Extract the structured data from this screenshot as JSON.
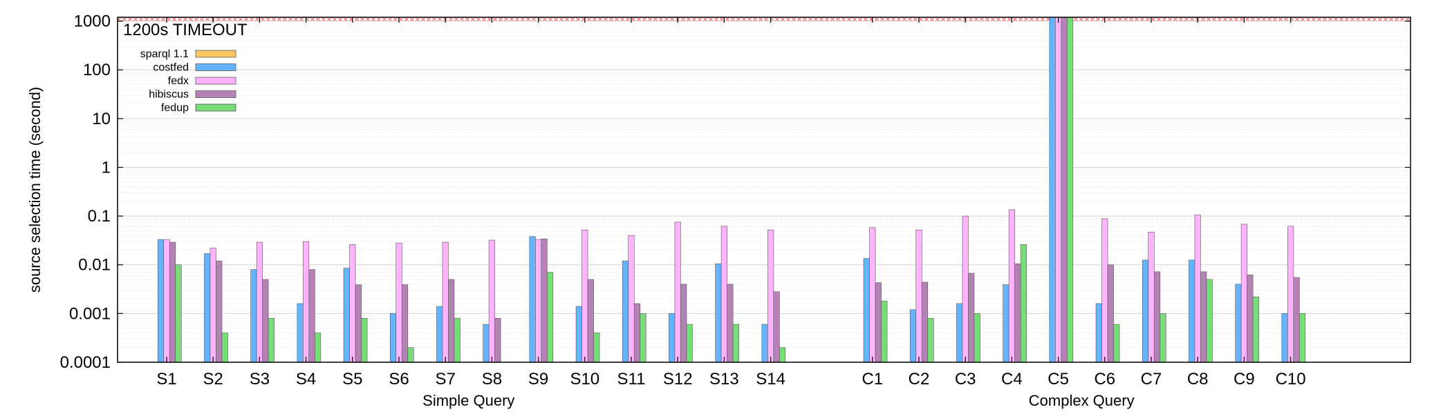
{
  "chart_data": {
    "type": "bar",
    "ylabel": "source selection time (second)",
    "yscale": "log",
    "ylim": [
      0.0001,
      1200
    ],
    "ytick_labels": [
      "0.0001",
      "0.001",
      "0.01",
      "0.1",
      "1",
      "10",
      "100",
      "1000"
    ],
    "ytick_values": [
      0.0001,
      0.001,
      0.01,
      0.1,
      1,
      10,
      100,
      1000
    ],
    "grid": true,
    "legend_position": "top-left",
    "timeout_label": "1200s TIMEOUT",
    "timeout_value": 1200,
    "groups": [
      {
        "label": "Simple Query",
        "categories": [
          "S1",
          "S2",
          "S3",
          "S4",
          "S5",
          "S6",
          "S7",
          "S8",
          "S9",
          "S10",
          "S11",
          "S12",
          "S13",
          "S14"
        ]
      },
      {
        "label": "Complex Query",
        "categories": [
          "C1",
          "C2",
          "C3",
          "C4",
          "C5",
          "C6",
          "C7",
          "C8",
          "C9",
          "C10"
        ]
      }
    ],
    "series": [
      {
        "name": "sparql 1.1",
        "color": "#ffc864",
        "values": [
          null,
          null,
          null,
          null,
          null,
          null,
          null,
          null,
          null,
          null,
          null,
          null,
          null,
          null,
          null,
          null,
          null,
          null,
          null,
          null,
          null,
          null,
          null,
          null
        ]
      },
      {
        "name": "costfed",
        "color": "#64b4ff",
        "values": [
          0.033,
          0.017,
          0.008,
          0.0016,
          0.0085,
          0.001,
          0.0014,
          0.0006,
          0.038,
          0.0014,
          0.012,
          0.001,
          0.0105,
          0.0006,
          0.0135,
          0.0012,
          0.0016,
          0.0039,
          1200,
          0.0016,
          0.0125,
          0.0125,
          0.004,
          0.001
        ]
      },
      {
        "name": "fedx",
        "color": "#ffb4ff",
        "values": [
          0.033,
          0.022,
          0.029,
          0.03,
          0.026,
          0.028,
          0.029,
          0.032,
          0.033,
          0.052,
          0.04,
          0.075,
          0.062,
          0.052,
          0.058,
          0.052,
          0.1,
          0.135,
          1200,
          0.088,
          0.047,
          0.105,
          0.068,
          0.062
        ]
      },
      {
        "name": "hibiscus",
        "color": "#b482b4",
        "values": [
          0.029,
          0.012,
          0.005,
          0.008,
          0.0039,
          0.0039,
          0.005,
          0.0008,
          0.034,
          0.005,
          0.0016,
          0.004,
          0.004,
          0.0028,
          0.0043,
          0.0044,
          0.0067,
          0.0105,
          1200,
          0.01,
          0.0072,
          0.0072,
          0.0062,
          0.0055
        ]
      },
      {
        "name": "fedup",
        "color": "#78dc78",
        "values": [
          0.01,
          0.0004,
          0.0008,
          0.0004,
          0.0008,
          0.0002,
          0.0008,
          null,
          0.007,
          0.0004,
          0.001,
          0.0006,
          0.0006,
          0.0002,
          0.0018,
          0.0008,
          0.001,
          0.026,
          1200,
          0.0006,
          0.001,
          0.005,
          0.0022,
          0.001
        ]
      }
    ]
  }
}
